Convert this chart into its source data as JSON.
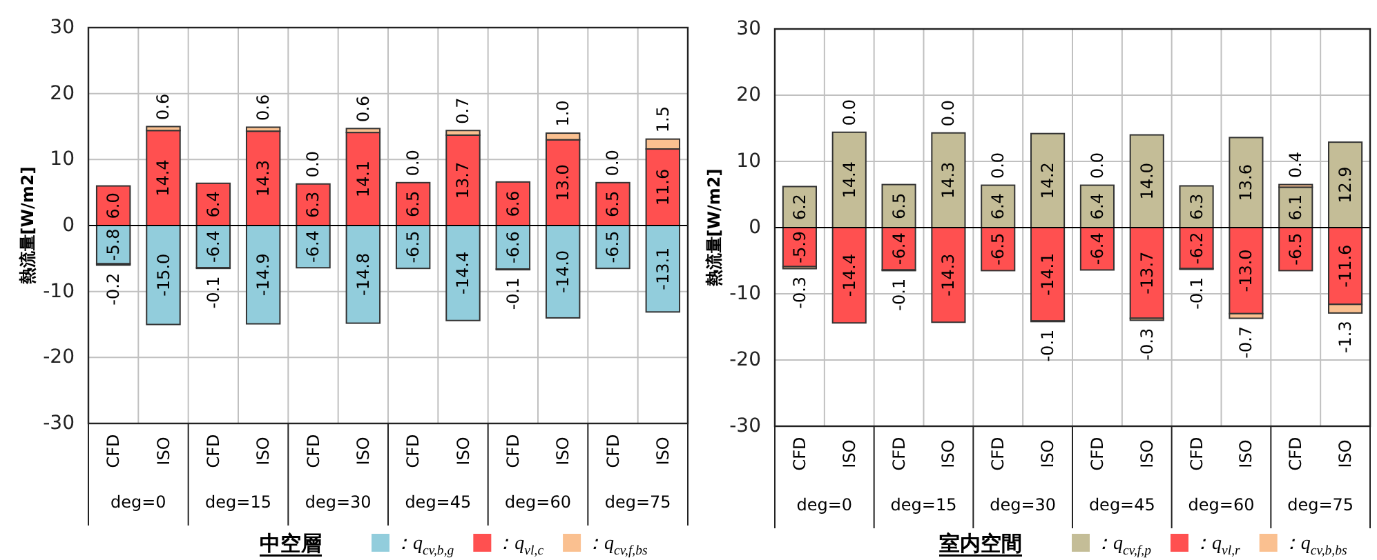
{
  "chart_data": [
    {
      "type": "bar",
      "stacked": true,
      "categories": [
        "CFD",
        "ISO",
        "CFD",
        "ISO",
        "CFD",
        "ISO",
        "CFD",
        "ISO",
        "CFD",
        "ISO",
        "CFD",
        "ISO"
      ],
      "annotations": [
        "deg=0",
        "deg=15",
        "deg=30",
        "deg=45",
        "deg=60",
        "deg=75"
      ],
      "ylabel": "熱流量[W/m2]",
      "legend_title": "中空層",
      "ylim": [
        -30,
        30
      ],
      "yticks": [
        -30,
        -20,
        -10,
        0,
        10,
        20,
        30
      ],
      "grid": true,
      "legend": "bottom",
      "series": [
        {
          "name": "：q$_{cv,b,g}$",
          "color": "#92cddc",
          "values": [
            -5.8,
            -15.0,
            -6.4,
            -14.9,
            -6.4,
            -14.8,
            -6.5,
            -14.4,
            -6.6,
            -14.0,
            -6.5,
            -13.1
          ],
          "value_labels": [
            "-5.8",
            "-15.0",
            "-6.4",
            "-14.9",
            "-6.4",
            "-14.8",
            "-6.5",
            "-14.4",
            "-6.6",
            "-14.0",
            "-6.5",
            "-13.1"
          ]
        },
        {
          "name": "：q$_{vl,c}$",
          "color": "#ff5050",
          "values": [
            6.0,
            14.4,
            6.4,
            14.3,
            6.3,
            14.1,
            6.5,
            13.7,
            6.6,
            13.0,
            6.5,
            11.6
          ],
          "value_labels": [
            "6.0",
            "14.4",
            "6.4",
            "14.3",
            "6.3",
            "14.1",
            "6.5",
            "13.7",
            "6.6",
            "13.0",
            "6.5",
            "11.6"
          ]
        },
        {
          "name": "：q$_{cv,f,bs}$",
          "color": "#fac090",
          "values": [
            -0.2,
            0.6,
            -0.1,
            0.6,
            0.0,
            0.6,
            0.0,
            0.7,
            -0.1,
            1.0,
            0.0,
            1.5
          ],
          "value_labels": [
            "-0.2",
            "0.6",
            "-0.1",
            "0.6",
            "0.0",
            "0.6",
            "0.0",
            "0.7",
            "-0.1",
            "1.0",
            "0.0",
            "1.5"
          ]
        }
      ]
    },
    {
      "type": "bar",
      "stacked": true,
      "categories": [
        "CFD",
        "ISO",
        "CFD",
        "ISO",
        "CFD",
        "ISO",
        "CFD",
        "ISO",
        "CFD",
        "ISO",
        "CFD",
        "ISO"
      ],
      "annotations": [
        "deg=0",
        "deg=15",
        "deg=30",
        "deg=45",
        "deg=60",
        "deg=75"
      ],
      "ylabel": "熱流量[W/m2]",
      "legend_title": "室内空間",
      "ylim": [
        -30,
        30
      ],
      "yticks": [
        -30,
        -20,
        -10,
        0,
        10,
        20,
        30
      ],
      "grid": true,
      "legend": "bottom",
      "series": [
        {
          "name": "：q$_{cv,f,p}$",
          "color": "#c4bd97",
          "values": [
            6.2,
            14.4,
            6.5,
            14.3,
            6.4,
            14.2,
            6.4,
            14.0,
            6.3,
            13.6,
            6.1,
            12.9
          ],
          "value_labels": [
            "6.2",
            "14.4",
            "6.5",
            "14.3",
            "6.4",
            "14.2",
            "6.4",
            "14.0",
            "6.3",
            "13.6",
            "6.1",
            "12.9"
          ]
        },
        {
          "name": "：q$_{vl,r}$",
          "color": "#ff5050",
          "values": [
            -5.9,
            -14.4,
            -6.4,
            -14.3,
            -6.5,
            -14.1,
            -6.4,
            -13.7,
            -6.2,
            -13.0,
            -6.5,
            -11.6
          ],
          "value_labels": [
            "-5.9",
            "-14.4",
            "-6.4",
            "-14.3",
            "-6.5",
            "-14.1",
            "-6.4",
            "-13.7",
            "-6.2",
            "-13.0",
            "-6.5",
            "-11.6"
          ]
        },
        {
          "name": "：q$_{cv,b,bs}$",
          "color": "#fac090",
          "values": [
            -0.3,
            0.0,
            -0.1,
            0.0,
            0.0,
            -0.1,
            0.0,
            -0.3,
            -0.1,
            -0.7,
            0.4,
            -1.3
          ],
          "value_labels": [
            "-0.3",
            "0.0",
            "-0.1",
            "0.0",
            "0.0",
            "-0.1",
            "0.0",
            "-0.3",
            "-0.1",
            "-0.7",
            "0.4",
            "-1.3"
          ]
        }
      ]
    }
  ]
}
